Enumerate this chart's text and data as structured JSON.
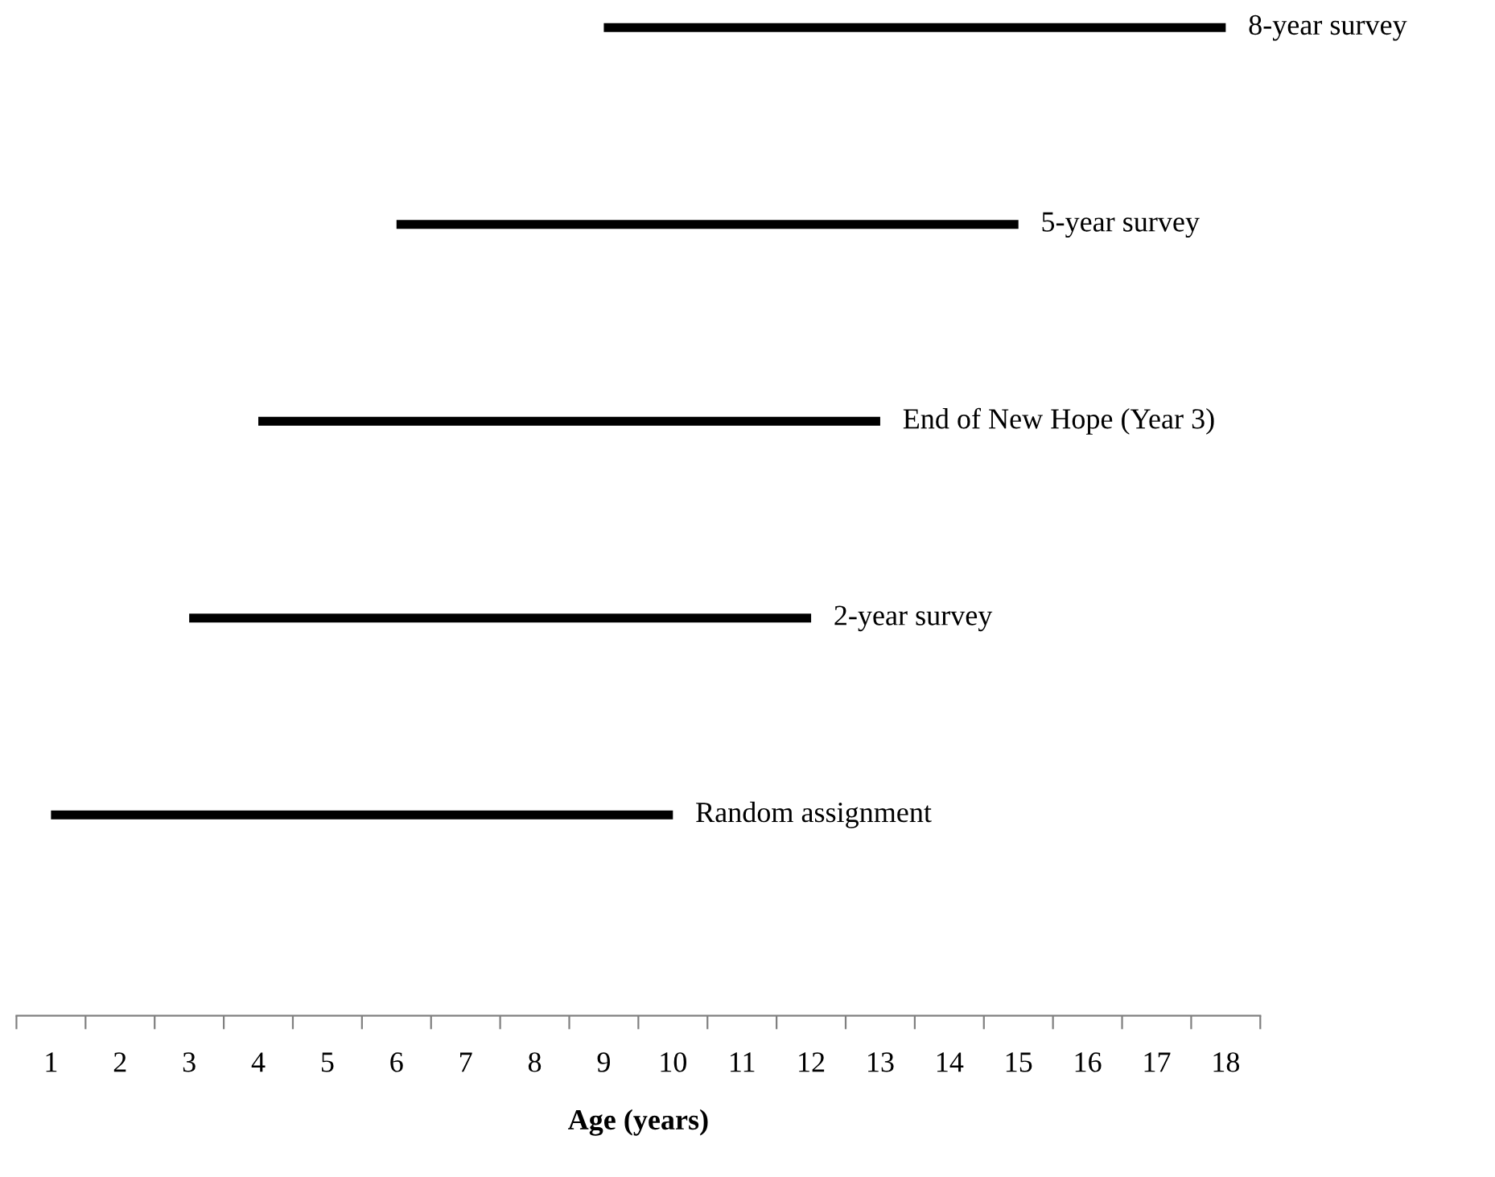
{
  "chart_data": {
    "type": "bar",
    "orientation": "horizontal",
    "xlabel": "Age (years)",
    "categories": [
      "8-year survey",
      "5-year survey",
      "End of New Hope (Year 3)",
      "2-year survey",
      "Random assignment"
    ],
    "base": [
      9,
      6,
      4,
      3,
      1
    ],
    "values": [
      9,
      9,
      9,
      9,
      9
    ],
    "color": "#000000",
    "xlim": [
      0.5,
      18.5
    ],
    "xticks": [
      1,
      2,
      3,
      4,
      5,
      6,
      7,
      8,
      9,
      10,
      11,
      12,
      13,
      14,
      15,
      16,
      17,
      18
    ],
    "grid": false,
    "legend": false
  }
}
